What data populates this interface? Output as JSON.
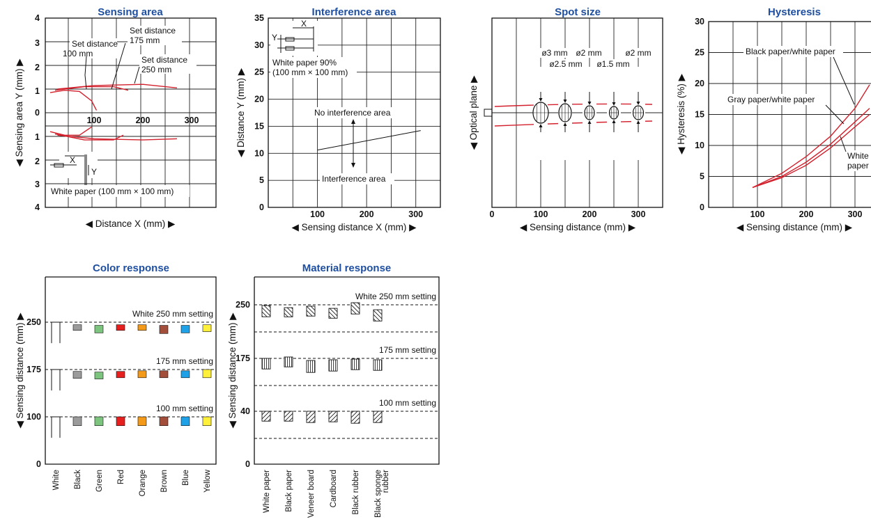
{
  "chart_data": [
    {
      "id": "sensing",
      "type": "line",
      "title": "Sensing area",
      "xlabel": "◀ Distance X (mm) ▶",
      "ylabel": "◀ Sensing area Y (mm) ▶",
      "xlim": [
        0,
        350
      ],
      "ylim": [
        -4,
        4
      ],
      "xticks": [
        100,
        200,
        300
      ],
      "yticks": [
        4,
        3,
        2,
        1,
        0,
        1,
        2,
        3,
        4
      ],
      "grid": true,
      "series": [
        {
          "name": "Set distance 100 mm",
          "upper": [
            [
              10,
              0.85
            ],
            [
              40,
              0.95
            ],
            [
              70,
              0.9
            ],
            [
              95,
              0.5
            ],
            [
              105,
              0.1
            ]
          ],
          "lower": [
            [
              10,
              -0.8
            ],
            [
              40,
              -0.95
            ],
            [
              70,
              -0.95
            ],
            [
              95,
              -0.6
            ]
          ]
        },
        {
          "name": "Set distance 175 mm",
          "upper": [
            [
              20,
              0.95
            ],
            [
              80,
              1.1
            ],
            [
              140,
              1.1
            ],
            [
              170,
              0.95
            ]
          ],
          "lower": [
            [
              20,
              -0.9
            ],
            [
              80,
              -1.15
            ],
            [
              140,
              -1.15
            ],
            [
              160,
              -0.95
            ]
          ]
        },
        {
          "name": "Set distance 250 mm",
          "upper": [
            [
              25,
              1.0
            ],
            [
              100,
              1.15
            ],
            [
              200,
              1.2
            ],
            [
              270,
              1.05
            ]
          ],
          "lower": [
            [
              25,
              -0.95
            ],
            [
              100,
              -1.1
            ],
            [
              200,
              -1.15
            ],
            [
              270,
              -1.1
            ]
          ]
        }
      ],
      "annotations": [
        "Set distance",
        "175 mm",
        "Set distance",
        "100 mm",
        "Set distance",
        "250 mm",
        "White paper (100 mm × 100 mm)",
        "X",
        "Y"
      ]
    },
    {
      "id": "interference",
      "type": "line",
      "title": "Interference area",
      "xlabel": "◀ Sensing distance X (mm) ▶",
      "ylabel": "◀ Distance Y (mm) ▶",
      "xlim": [
        0,
        350
      ],
      "ylim": [
        0,
        35
      ],
      "xticks": [
        100,
        200,
        300
      ],
      "yticks": [
        0,
        5,
        10,
        15,
        20,
        25,
        30,
        35
      ],
      "grid": true,
      "series": [
        {
          "name": "",
          "x": [
            100,
            310
          ],
          "y": [
            10.6,
            14.2
          ]
        }
      ],
      "annotations": [
        "White paper 90%",
        "(100 mm × 100 mm)",
        "No interference area",
        "Interference area",
        "X",
        "Y"
      ]
    },
    {
      "id": "spot",
      "type": "line",
      "title": "Spot size",
      "xlabel": "◀ Sensing distance (mm) ▶",
      "ylabel": "◀ Optical plane ▶",
      "xlim": [
        0,
        350
      ],
      "xticks": [
        0,
        100,
        200,
        300
      ],
      "grid": true,
      "spots": [
        {
          "x": 100,
          "label": "ø3 mm"
        },
        {
          "x": 150,
          "label": "ø2.5 mm"
        },
        {
          "x": 200,
          "label": "ø2 mm"
        },
        {
          "x": 250,
          "label": "ø1.5 mm"
        },
        {
          "x": 300,
          "label": "ø2 mm"
        }
      ]
    },
    {
      "id": "hysteresis",
      "type": "line",
      "title": "Hysteresis",
      "xlabel": "◀ Sensing distance (mm) ▶",
      "ylabel": "◀ Hysteresis (%) ▶",
      "xlim": [
        0,
        350
      ],
      "ylim": [
        0,
        30
      ],
      "xticks": [
        100,
        200,
        300
      ],
      "yticks": [
        0,
        5,
        10,
        15,
        20,
        25,
        30
      ],
      "grid": true,
      "series": [
        {
          "name": "Black paper/white paper",
          "x": [
            90,
            150,
            200,
            250,
            300,
            330
          ],
          "y": [
            3.2,
            5.5,
            8.2,
            11.5,
            16.0,
            19.8
          ]
        },
        {
          "name": "Gray paper/white paper",
          "x": [
            90,
            150,
            200,
            250,
            300,
            330
          ],
          "y": [
            3.2,
            5.0,
            7.3,
            10.2,
            13.8,
            16.0
          ]
        },
        {
          "name": "White paper",
          "x": [
            90,
            150,
            200,
            250,
            300,
            330
          ],
          "y": [
            3.2,
            4.8,
            6.8,
            9.6,
            13.0,
            15.0
          ]
        }
      ],
      "annotations": [
        "White",
        "paper"
      ]
    },
    {
      "id": "color",
      "type": "bar",
      "title": "Color response",
      "xlabel": "",
      "ylabel": "◀ Sensing distance (mm) ▶",
      "yticks": [
        0,
        100,
        175,
        250
      ],
      "categories": [
        "White",
        "Black",
        "Green",
        "Red",
        "Orange",
        "Brown",
        "Blue",
        "Yellow"
      ],
      "bar_colors": [
        "#ffffff",
        "#9b9b9b",
        "#7dc47e",
        "#e5201f",
        "#f39a1b",
        "#a34e3a",
        "#1ea1e6",
        "#fff03c"
      ],
      "groups": [
        {
          "label": "White 250 mm setting",
          "setting": 250,
          "tops": [
            250,
            246,
            245,
            246,
            246,
            245,
            245,
            246
          ],
          "bottoms": [
            230,
            237,
            233,
            237,
            237,
            232,
            233,
            235
          ]
        },
        {
          "label": "175 mm setting",
          "setting": 175,
          "tops": [
            175,
            172,
            171,
            172,
            173,
            173,
            173,
            175
          ],
          "bottoms": [
            155,
            161,
            160,
            162,
            162,
            162,
            162,
            162
          ]
        },
        {
          "label": "100 mm setting",
          "setting": 100,
          "tops": [
            100,
            100,
            100,
            100,
            100,
            100,
            100,
            100
          ],
          "bottoms": [
            80,
            86,
            86,
            86,
            86,
            86,
            86,
            86
          ]
        }
      ]
    },
    {
      "id": "material",
      "type": "bar",
      "title": "Material response",
      "xlabel": "",
      "ylabel": "◀ Sensing distance (mm) ▶",
      "yticks": [
        0,
        40,
        175,
        250
      ],
      "categories": [
        "White paper",
        "Black paper",
        "Veneer board",
        "Cardboard",
        "Black rubber",
        "Black sponge rubber"
      ],
      "groups": [
        {
          "label": "White 250 mm setting",
          "setting": 250,
          "tops": [
            249,
            246,
            248,
            245,
            253,
            243
          ],
          "bottoms": [
            233,
            233,
            234,
            231,
            237,
            227
          ]
        },
        {
          "label": "175 mm setting",
          "setting": 175,
          "tops": [
            175,
            177,
            172,
            173,
            174,
            173
          ],
          "bottoms": [
            160,
            163,
            155,
            157,
            159,
            158
          ]
        },
        {
          "label": "100 mm setting",
          "setting": 100,
          "tops": [
            100,
            100,
            100,
            100,
            100,
            100
          ],
          "bottoms": [
            86,
            86,
            84,
            85,
            83,
            84
          ]
        }
      ]
    }
  ]
}
